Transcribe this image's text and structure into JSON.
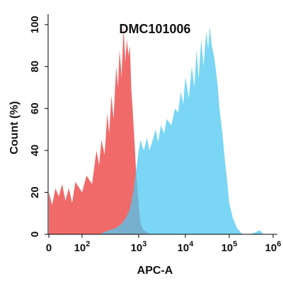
{
  "chart_data": {
    "type": "area",
    "title": "DMC101006",
    "xlabel": "APC-A",
    "ylabel": "Count (%)",
    "x_scale": "biexponential",
    "xlim": [
      -30,
      1000000
    ],
    "ylim": [
      0,
      105
    ],
    "xticks": [
      {
        "value": 0,
        "base": "0",
        "exp": ""
      },
      {
        "value": 100,
        "base": "10",
        "exp": "2"
      },
      {
        "value": 1000,
        "base": "10",
        "exp": "3"
      },
      {
        "value": 10000,
        "base": "10",
        "exp": "4"
      },
      {
        "value": 100000,
        "base": "10",
        "exp": "5"
      },
      {
        "value": 1000000,
        "base": "10",
        "exp": "6"
      }
    ],
    "yticks": [
      "0",
      "20",
      "40",
      "60",
      "80",
      "100"
    ],
    "grid": false,
    "legend": "none",
    "series": [
      {
        "color": "#f05a5a",
        "x": [
          -30,
          -20,
          -10,
          0,
          10,
          20,
          30,
          40,
          50,
          60,
          70,
          80,
          100,
          120,
          150,
          180,
          200,
          220,
          250,
          280,
          300,
          330,
          360,
          400,
          430,
          460,
          500,
          540,
          580,
          620,
          660,
          700,
          740,
          780,
          820,
          860,
          900,
          950,
          1000,
          1050,
          1100,
          1200,
          1300,
          1500,
          1800,
          2000
        ],
        "y": [
          5,
          12,
          6,
          20,
          14,
          22,
          18,
          24,
          16,
          22,
          15,
          25,
          20,
          28,
          24,
          40,
          33,
          45,
          38,
          58,
          48,
          66,
          55,
          80,
          70,
          88,
          75,
          99,
          82,
          93,
          85,
          90,
          70,
          60,
          50,
          40,
          30,
          22,
          14,
          9,
          5,
          3,
          2,
          1,
          0,
          0
        ]
      },
      {
        "color": "#4ec8f0",
        "x": [
          200,
          300,
          400,
          500,
          600,
          700,
          800,
          900,
          1000,
          1100,
          1200,
          1300,
          1500,
          1700,
          2000,
          2300,
          2600,
          3000,
          3500,
          4000,
          5000,
          6000,
          7000,
          8000,
          9000,
          10000,
          12000,
          14000,
          16000,
          18000,
          20000,
          23000,
          26000,
          30000,
          33000,
          36000,
          40000,
          45000,
          50000,
          55000,
          60000,
          70000,
          80000,
          90000,
          100000,
          120000,
          150000,
          200000,
          300000,
          400000,
          500000,
          600000,
          700000
        ],
        "y": [
          0,
          2,
          3,
          5,
          8,
          12,
          20,
          30,
          40,
          45,
          42,
          40,
          46,
          40,
          45,
          50,
          44,
          52,
          48,
          55,
          52,
          60,
          58,
          68,
          62,
          75,
          65,
          80,
          70,
          88,
          74,
          93,
          80,
          97,
          88,
          99,
          90,
          85,
          78,
          70,
          60,
          48,
          35,
          25,
          15,
          8,
          3,
          0,
          0,
          1,
          2,
          0,
          0
        ]
      }
    ]
  }
}
